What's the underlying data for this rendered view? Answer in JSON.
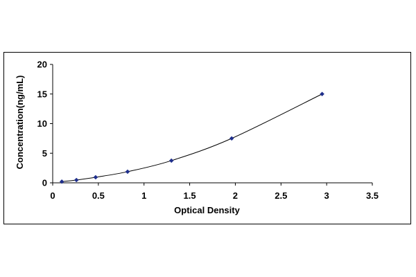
{
  "chart_data": {
    "type": "scatter",
    "title": "",
    "xlabel": "Optical Density",
    "ylabel": "Concentration(ng/mL)",
    "xlim": [
      0,
      3.5
    ],
    "ylim": [
      0,
      20
    ],
    "x_ticks": [
      "0",
      "0.5",
      "1",
      "1.5",
      "2",
      "2.5",
      "3",
      "3.5"
    ],
    "y_ticks": [
      "0",
      "5",
      "10",
      "15",
      "20"
    ],
    "grid": false,
    "legend": "none",
    "marker_color": "#1f2f8c",
    "line_color": "#000000",
    "series": [
      {
        "points": [
          {
            "x": 0.1,
            "y": 0.2
          },
          {
            "x": 0.26,
            "y": 0.47
          },
          {
            "x": 0.47,
            "y": 0.94
          },
          {
            "x": 0.82,
            "y": 1.88
          },
          {
            "x": 1.3,
            "y": 3.75
          },
          {
            "x": 1.96,
            "y": 7.5
          },
          {
            "x": 2.95,
            "y": 15
          }
        ]
      }
    ]
  }
}
